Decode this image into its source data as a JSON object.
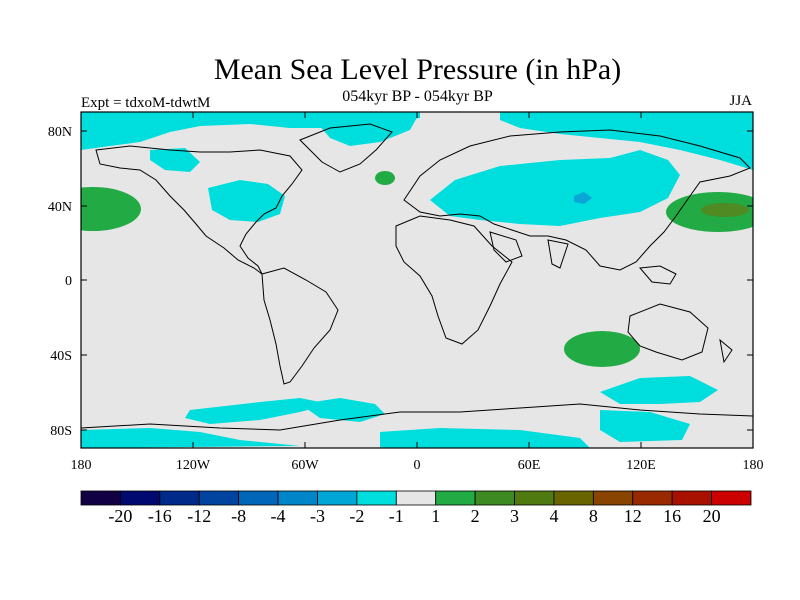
{
  "title": "Mean Sea Level Pressure (in hPa)",
  "subtitle": "054kyr BP - 054kyr BP",
  "expt_label": "Expt = tdxoM-tdwtM",
  "season": "JJA",
  "y_ticks": [
    "80N",
    "40N",
    "0",
    "40S",
    "80S"
  ],
  "x_ticks": [
    "180",
    "120W",
    "60W",
    "0",
    "60E",
    "120E",
    "180"
  ],
  "colors": {
    "land_lines": "#000000",
    "neutral": "#e6e6e6",
    "neg_1_2": "#00dddd",
    "pos_1_2": "#22aa44",
    "pos_2_3": "#4f8a22",
    "pos_3_4": "#7a6a22",
    "neg_2_3": "#0aa6d6"
  },
  "colorbar": {
    "colors": [
      "#110044",
      "#000a6e",
      "#002a8a",
      "#0044a0",
      "#0066b8",
      "#0085c8",
      "#00a6d6",
      "#00dddd",
      "#e6e6e6",
      "#22aa44",
      "#3d8a22",
      "#4f7a10",
      "#6a6400",
      "#884400",
      "#992a00",
      "#a81000",
      "#cc0000"
    ],
    "labels": [
      "-20",
      "-16",
      "-12",
      "-8",
      "-4",
      "-3",
      "-2",
      "-1",
      "1",
      "2",
      "3",
      "4",
      "8",
      "12",
      "16",
      "20"
    ]
  }
}
